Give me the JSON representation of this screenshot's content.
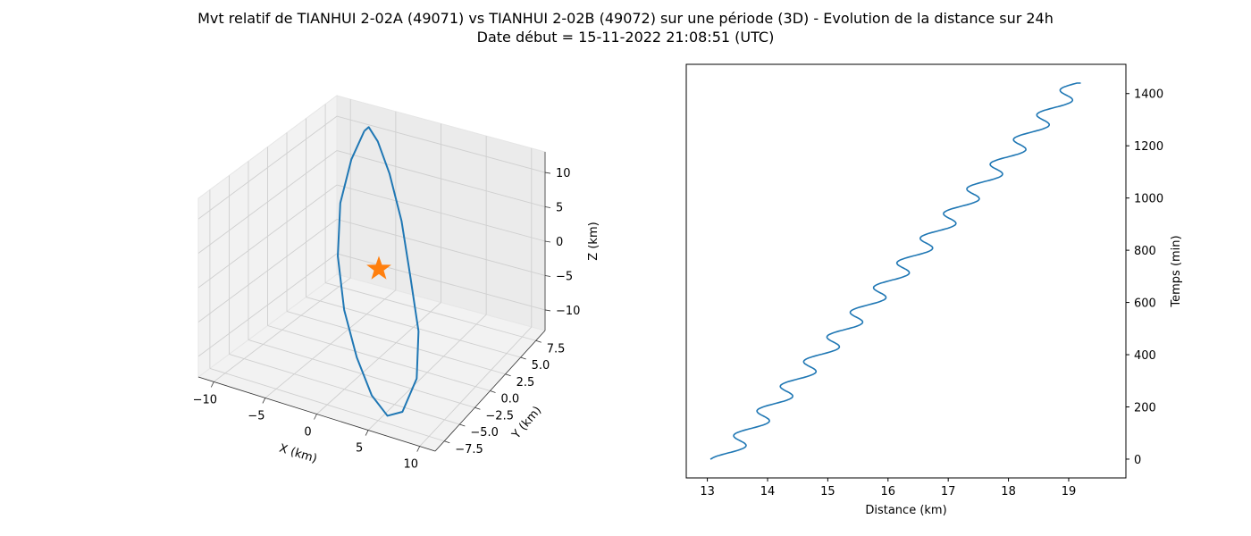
{
  "title": {
    "line1": "Mvt relatif de TIANHUI 2-02A (49071) vs TIANHUI 2-02B (49072) sur une période (3D) - Evolution de la distance sur 24h",
    "line2": "Date début = 15-11-2022 21:08:51 (UTC)"
  },
  "chart_data": [
    {
      "type": "line3d",
      "xlabel": "X (km)",
      "ylabel": "Y (km)",
      "zlabel": "Z (km)",
      "x_ticks": [
        "−10",
        "−5",
        "0",
        "5",
        "10"
      ],
      "y_ticks": [
        "−7.5",
        "−5.0",
        "−2.5",
        "0.0",
        "2.5",
        "5.0",
        "7.5"
      ],
      "z_ticks": [
        "−10",
        "−5",
        "0",
        "5",
        "10"
      ],
      "xlim": [
        -11.5,
        11.5
      ],
      "ylim": [
        -9,
        9
      ],
      "zlim": [
        -13,
        13
      ],
      "grid": true,
      "series_color": "#1f77b4",
      "marker": {
        "symbol": "star",
        "color": "#ff7f0e",
        "x": 0,
        "y": 0,
        "z": 0
      },
      "orbit": {
        "x": [
          -7,
          -6.2,
          -4.2,
          -1.5,
          1.5,
          4.2,
          6.5,
          7.6,
          7.2,
          5.6,
          3.0,
          0,
          -3.0,
          -5.6,
          -7.2,
          -7.6,
          -7
        ],
        "y": [
          7.2,
          6.8,
          5.5,
          3.6,
          1.2,
          -1.4,
          -3.6,
          -5.6,
          -7.2,
          -7.0,
          -5.4,
          -3.2,
          -0.8,
          1.8,
          4.2,
          6.2,
          7.2
        ],
        "z": [
          11,
          12.2,
          12.0,
          10.0,
          6.5,
          2.0,
          -3.0,
          -7.5,
          -11.0,
          -12.5,
          -12.2,
          -10.0,
          -6.5,
          -2.0,
          3.0,
          7.5,
          11
        ]
      }
    },
    {
      "type": "line",
      "xlabel": "Distance (km)",
      "ylabel": "Temps (min)",
      "xlim": [
        12.65,
        19.95
      ],
      "ylim": [
        -72,
        1512
      ],
      "x_ticks": [
        13,
        14,
        15,
        16,
        17,
        18,
        19
      ],
      "y_ticks": [
        0,
        200,
        400,
        600,
        800,
        1000,
        1200,
        1400
      ],
      "grid": false,
      "series_color": "#1f77b4",
      "model": {
        "t_max_min": 1440,
        "d_start_km": 13.25,
        "d_end_km": 19.15,
        "amplitude_km": 0.19,
        "period_min": 94.5
      },
      "start_point": {
        "distance": 13.05,
        "time": 0
      },
      "end_point": {
        "distance": 19.2,
        "time": 1440
      }
    }
  ]
}
